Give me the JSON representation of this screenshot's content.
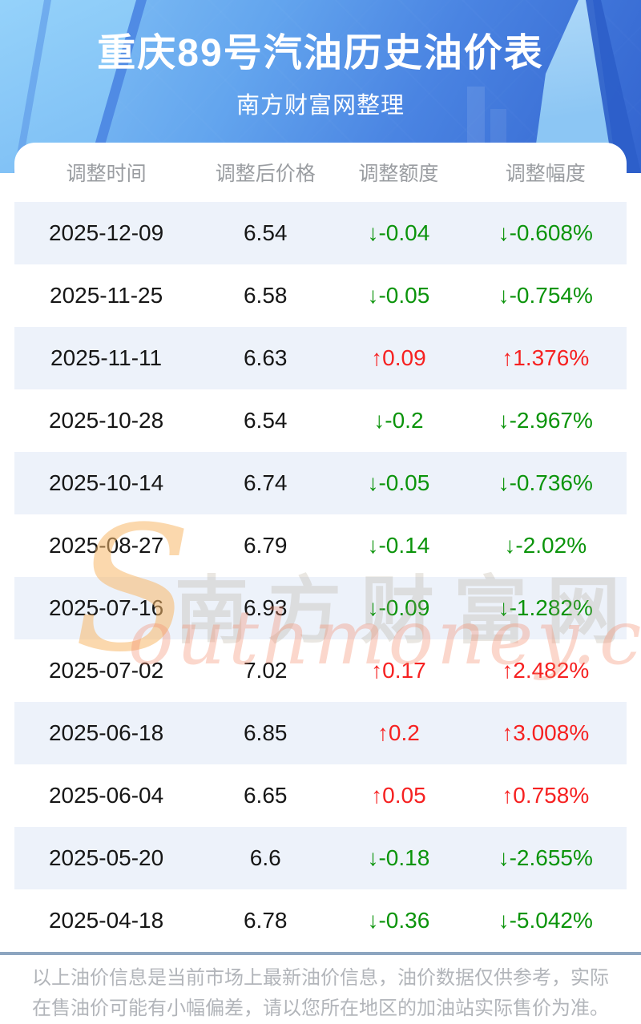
{
  "header": {
    "title": "重庆89号汽油历史油价表",
    "subtitle": "南方财富网整理"
  },
  "table": {
    "columns": [
      "调整时间",
      "调整后价格",
      "调整额度",
      "调整幅度"
    ],
    "rows": [
      {
        "date": "2025-12-09",
        "price": "6.54",
        "change": "↓-0.04",
        "pct": "↓-0.608%",
        "dir": "down"
      },
      {
        "date": "2025-11-25",
        "price": "6.58",
        "change": "↓-0.05",
        "pct": "↓-0.754%",
        "dir": "down"
      },
      {
        "date": "2025-11-11",
        "price": "6.63",
        "change": "↑0.09",
        "pct": "↑1.376%",
        "dir": "up"
      },
      {
        "date": "2025-10-28",
        "price": "6.54",
        "change": "↓-0.2",
        "pct": "↓-2.967%",
        "dir": "down"
      },
      {
        "date": "2025-10-14",
        "price": "6.74",
        "change": "↓-0.05",
        "pct": "↓-0.736%",
        "dir": "down"
      },
      {
        "date": "2025-08-27",
        "price": "6.79",
        "change": "↓-0.14",
        "pct": "↓-2.02%",
        "dir": "down"
      },
      {
        "date": "2025-07-16",
        "price": "6.93",
        "change": "↓-0.09",
        "pct": "↓-1.282%",
        "dir": "down"
      },
      {
        "date": "2025-07-02",
        "price": "7.02",
        "change": "↑0.17",
        "pct": "↑2.482%",
        "dir": "up"
      },
      {
        "date": "2025-06-18",
        "price": "6.85",
        "change": "↑0.2",
        "pct": "↑3.008%",
        "dir": "up"
      },
      {
        "date": "2025-06-04",
        "price": "6.65",
        "change": "↑0.05",
        "pct": "↑0.758%",
        "dir": "up"
      },
      {
        "date": "2025-05-20",
        "price": "6.6",
        "change": "↓-0.18",
        "pct": "↓-2.655%",
        "dir": "down"
      },
      {
        "date": "2025-04-18",
        "price": "6.78",
        "change": "↓-0.36",
        "pct": "↓-5.042%",
        "dir": "down"
      }
    ]
  },
  "watermark": {
    "s": "S",
    "cn": "南方财富网",
    "en": "outhmoney.com"
  },
  "footer": {
    "line1": "以上油价信息是当前市场上最新油价信息，油价数据仅供参考，实际",
    "line2": "在售油价可能有小幅偏差，请以您所在地区的加油站实际售价为准。"
  },
  "colors": {
    "up_red": "#f62121",
    "down_green": "#0b940b",
    "stripe_blue": "#edf2fa",
    "divider_blue_gray": "#8da5c0",
    "banner_blue_light": "#8ac8f7",
    "banner_blue_dark": "#3364cf"
  },
  "chart_data": {
    "type": "table",
    "title": "重庆89号汽油历史油价表",
    "subtitle": "南方财富网整理",
    "columns": [
      "调整时间",
      "调整后价格",
      "调整额度",
      "调整幅度"
    ],
    "rows": [
      [
        "2025-12-09",
        6.54,
        -0.04,
        "-0.608%"
      ],
      [
        "2025-11-25",
        6.58,
        -0.05,
        "-0.754%"
      ],
      [
        "2025-11-11",
        6.63,
        0.09,
        "1.376%"
      ],
      [
        "2025-10-28",
        6.54,
        -0.2,
        "-2.967%"
      ],
      [
        "2025-10-14",
        6.74,
        -0.05,
        "-0.736%"
      ],
      [
        "2025-08-27",
        6.79,
        -0.14,
        "-2.02%"
      ],
      [
        "2025-07-16",
        6.93,
        -0.09,
        "-1.282%"
      ],
      [
        "2025-07-02",
        7.02,
        0.17,
        "2.482%"
      ],
      [
        "2025-06-18",
        6.85,
        0.2,
        "3.008%"
      ],
      [
        "2025-06-04",
        6.65,
        0.05,
        "0.758%"
      ],
      [
        "2025-05-20",
        6.6,
        -0.18,
        "-2.655%"
      ],
      [
        "2025-04-18",
        6.78,
        -0.36,
        "-5.042%"
      ]
    ],
    "notes": "绿色↓表示下调，红色↑表示上调；隔行浅蓝底纹"
  }
}
